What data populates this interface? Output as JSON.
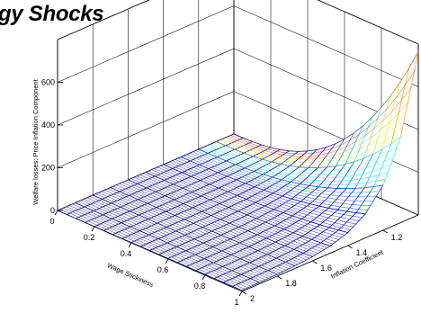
{
  "chart_data": {
    "type": "surface",
    "title": "gy Shocks",
    "xlabel": "Wage Stickiness",
    "ylabel": "Inflation Coefficient",
    "zlabel": "Welfare losses: Price Inflation Component",
    "xticks": [
      "0",
      "0.2",
      "0.4",
      "0.6",
      "0.8",
      "1"
    ],
    "yticks": [
      "1.2",
      "1.4",
      "1.6",
      "1.8",
      "2"
    ],
    "zticks": [
      "0",
      "200",
      "400",
      "600"
    ],
    "xlim": [
      0,
      1
    ],
    "ylim": [
      1,
      2
    ],
    "zlim": [
      0,
      800
    ],
    "grid": true,
    "colormap": "jet",
    "mesh_x_count": 21,
    "mesh_y_count": 11,
    "peak_value": 760,
    "peak_at": {
      "wage_stickiness": 1,
      "inflation_coefficient": 1
    }
  }
}
